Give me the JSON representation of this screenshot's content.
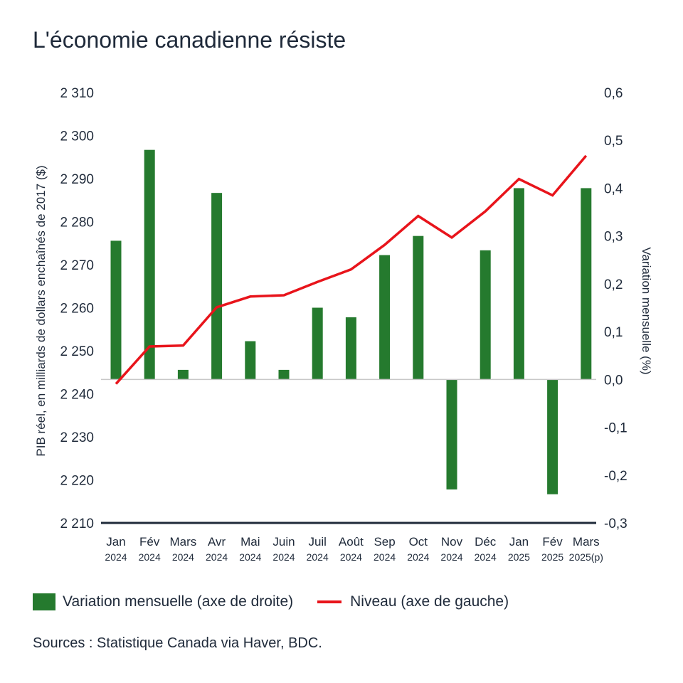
{
  "title": "L'économie canadienne résiste",
  "legend": {
    "bars_label": "Variation mensuelle (axe de droite)",
    "line_label": "Niveau (axe de gauche)"
  },
  "source": "Sources : Statistique Canada via Haver, BDC.",
  "colors": {
    "bars": "#257a2e",
    "line": "#e8141b",
    "text": "#1f2a3a",
    "zero_line": "#c8c8c8",
    "axis": "#1f2a3a"
  },
  "chart_data": {
    "type": "bar+line",
    "title": "L'économie canadienne résiste",
    "categories": [
      {
        "month": "Jan",
        "year": "2024"
      },
      {
        "month": "Fév",
        "year": "2024"
      },
      {
        "month": "Mars",
        "year": "2024"
      },
      {
        "month": "Avr",
        "year": "2024"
      },
      {
        "month": "Mai",
        "year": "2024"
      },
      {
        "month": "Juin",
        "year": "2024"
      },
      {
        "month": "Juil",
        "year": "2024"
      },
      {
        "month": "Août",
        "year": "2024"
      },
      {
        "month": "Sep",
        "year": "2024"
      },
      {
        "month": "Oct",
        "year": "2024"
      },
      {
        "month": "Nov",
        "year": "2024"
      },
      {
        "month": "Déc",
        "year": "2024"
      },
      {
        "month": "Jan",
        "year": "2025"
      },
      {
        "month": "Fév",
        "year": "2025"
      },
      {
        "month": "Mars",
        "year": "2025(p)"
      }
    ],
    "left_axis": {
      "label": "PIB réel, en milliards de dollars enchaînés de 2017 ($)",
      "ylim": [
        2210,
        2310
      ],
      "ticks": [
        "2 310",
        "2 300",
        "2 290",
        "2 280",
        "2 270",
        "2 260",
        "2 250",
        "2 240",
        "2 230",
        "2 220",
        "2 210"
      ]
    },
    "right_axis": {
      "label": "Variation mensuelle (%)",
      "ylim": [
        -0.3,
        0.6
      ],
      "ticks": [
        "0,6",
        "0,5",
        "0,4",
        "0,3",
        "0,2",
        "0,1",
        "0,0",
        "-0,1",
        "-0,2",
        "-0,3"
      ]
    },
    "series": [
      {
        "name": "Variation mensuelle (axe de droite)",
        "type": "bar",
        "axis": "right",
        "values": [
          0.29,
          0.48,
          0.02,
          0.39,
          0.08,
          0.02,
          0.15,
          0.13,
          0.26,
          0.3,
          -0.23,
          0.27,
          0.4,
          -0.24,
          0.4
        ]
      },
      {
        "name": "Niveau (axe de gauche)",
        "type": "line",
        "axis": "left",
        "values": [
          2242.3,
          2251.0,
          2251.2,
          2260.1,
          2262.6,
          2262.9,
          2266.0,
          2268.9,
          2274.6,
          2281.3,
          2276.3,
          2282.4,
          2289.9,
          2286.1,
          2295.3
        ]
      }
    ],
    "grid": false,
    "legend_position": "bottom"
  }
}
